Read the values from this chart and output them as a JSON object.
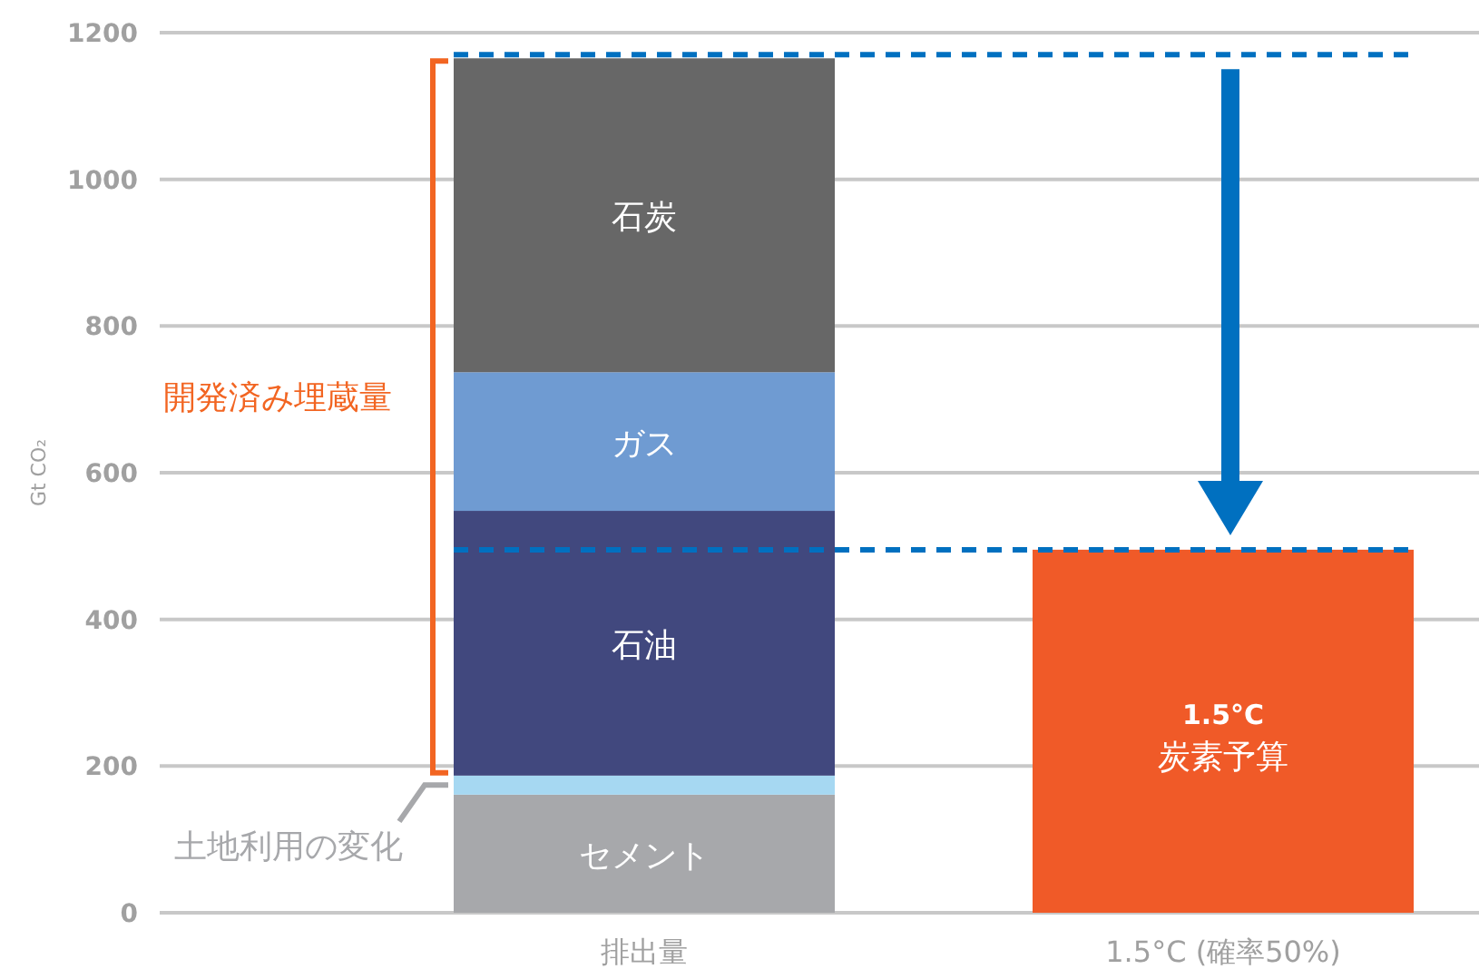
{
  "chart_data": {
    "type": "bar",
    "stacked": true,
    "categories": [
      "排出量",
      "1.5°C (確率50%)"
    ],
    "ylabel": "Gt CO₂",
    "ylim": [
      0,
      1200
    ],
    "yticks": [
      0,
      200,
      400,
      600,
      800,
      1000,
      1200
    ],
    "grid": "y",
    "series": [
      {
        "name": "セメント",
        "color": "#a7a8ab",
        "values": [
          161,
          null
        ]
      },
      {
        "color": "#a6d8f2",
        "values": [
          26,
          null
        ]
      },
      {
        "name": "石油",
        "color": "#41487e",
        "values": [
          361,
          null
        ]
      },
      {
        "name": "ガス",
        "color": "#6f9bd2",
        "values": [
          189,
          null
        ]
      },
      {
        "name": "石炭",
        "color": "#676767",
        "values": [
          428,
          null
        ]
      },
      {
        "name": "1.5°C 炭素予算",
        "color": "#f05a28",
        "values": [
          null,
          495
        ]
      }
    ],
    "ref_lines": [
      {
        "axis": "y",
        "value": 1170,
        "color": "#0070c0",
        "line_style": "dashed"
      },
      {
        "axis": "y",
        "value": 495,
        "color": "#0070c0",
        "line_style": "dashed"
      }
    ],
    "annotations": [
      "土地利用の変化",
      "開発済み埋蔵量"
    ]
  }
}
